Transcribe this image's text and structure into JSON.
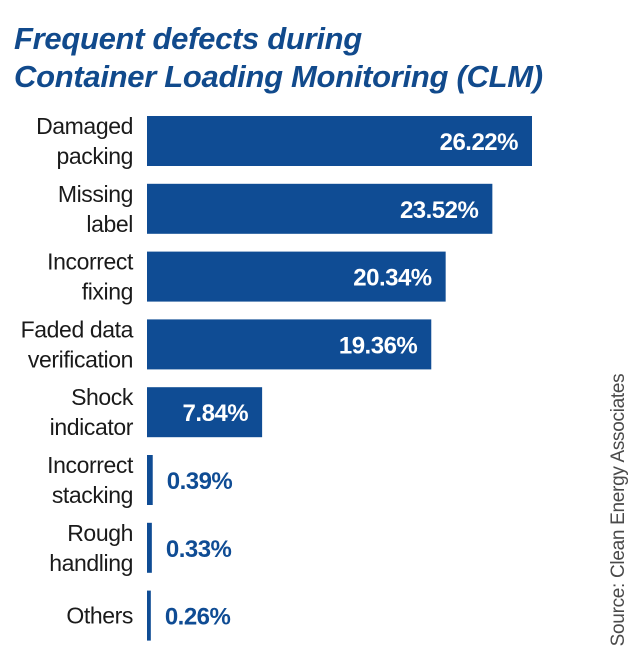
{
  "chart_data": {
    "type": "bar",
    "orientation": "horizontal",
    "title_lines": [
      "Frequent defects during",
      "Container Loading Monitoring (CLM)"
    ],
    "categories": [
      [
        "Damaged",
        "packing"
      ],
      [
        "Missing",
        "label"
      ],
      [
        "Incorrect",
        "fixing"
      ],
      [
        "Faded data",
        "verification"
      ],
      [
        "Shock",
        "indicator"
      ],
      [
        "Incorrect",
        "stacking"
      ],
      [
        "Rough",
        "handling"
      ],
      [
        "Others"
      ]
    ],
    "values": [
      26.22,
      23.52,
      20.34,
      19.36,
      7.84,
      0.39,
      0.33,
      0.26
    ],
    "value_labels": [
      "26.22%",
      "23.52%",
      "20.34%",
      "19.36%",
      "7.84%",
      "0.39%",
      "0.33%",
      "0.26%"
    ],
    "unit": "%",
    "xlim": [
      0,
      26.22
    ],
    "grid": false,
    "legend": "none",
    "bar_color": "#0f4c94"
  },
  "source": "Source: Clean Energy Associates"
}
